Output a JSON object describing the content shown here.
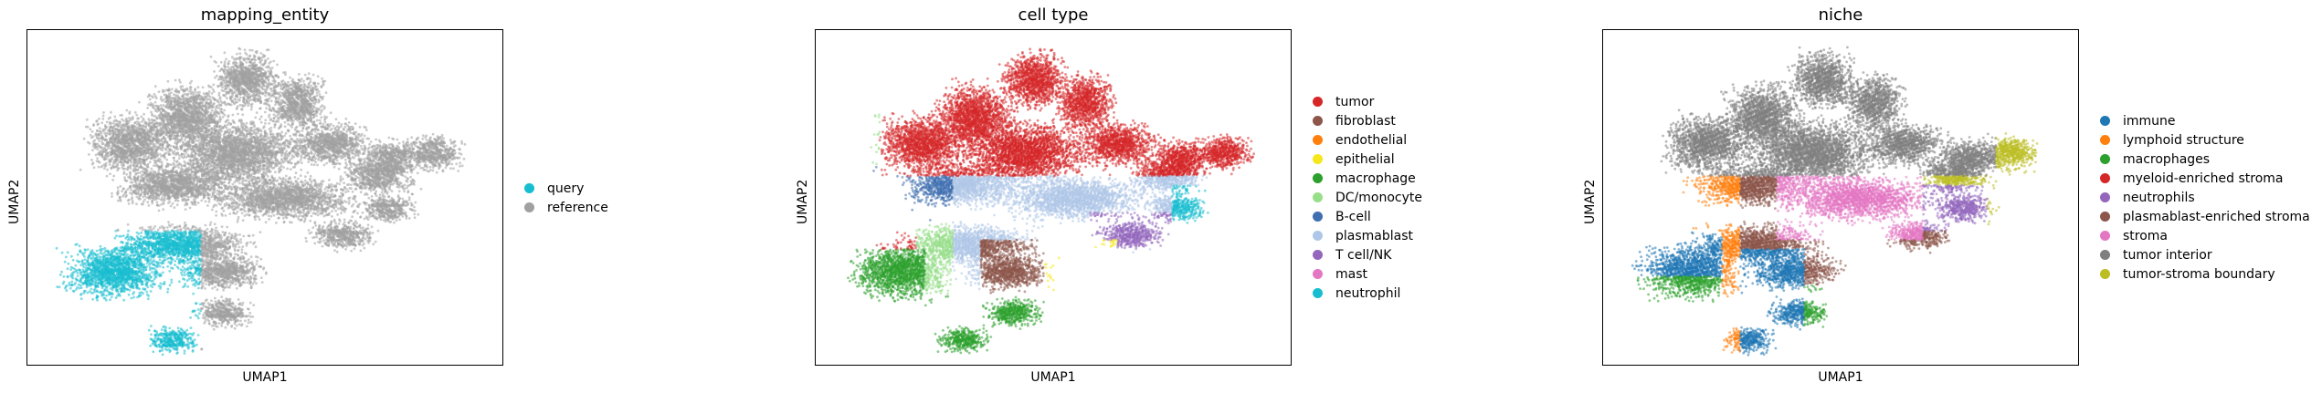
{
  "chart_data": [
    {
      "type": "scatter",
      "title": "mapping_entity",
      "xlabel": "UMAP1",
      "ylabel": "UMAP2",
      "legend_position": "right",
      "categories": [
        {
          "name": "query",
          "color": "#17becf"
        },
        {
          "name": "reference",
          "color": "#a0a0a0"
        }
      ]
    },
    {
      "type": "scatter",
      "title": "cell type",
      "xlabel": "UMAP1",
      "ylabel": "UMAP2",
      "legend_position": "right",
      "categories": [
        {
          "name": "tumor",
          "color": "#d62728"
        },
        {
          "name": "fibroblast",
          "color": "#8c564b"
        },
        {
          "name": "endothelial",
          "color": "#ff7f0e"
        },
        {
          "name": "epithelial",
          "color": "#f5e71a"
        },
        {
          "name": "macrophage",
          "color": "#2ca02c"
        },
        {
          "name": "DC/monocyte",
          "color": "#98df8a"
        },
        {
          "name": "B-cell",
          "color": "#3f6fb0"
        },
        {
          "name": "plasmablast",
          "color": "#aec7e8"
        },
        {
          "name": "T cell/NK",
          "color": "#9467bd"
        },
        {
          "name": "mast",
          "color": "#e377c2"
        },
        {
          "name": "neutrophil",
          "color": "#17becf"
        }
      ]
    },
    {
      "type": "scatter",
      "title": "niche",
      "xlabel": "UMAP1",
      "ylabel": "UMAP2",
      "legend_position": "right",
      "categories": [
        {
          "name": "immune",
          "color": "#1f77b4"
        },
        {
          "name": "lymphoid structure",
          "color": "#ff7f0e"
        },
        {
          "name": "macrophages",
          "color": "#2ca02c"
        },
        {
          "name": "myeloid-enriched stroma",
          "color": "#d62728"
        },
        {
          "name": "neutrophils",
          "color": "#9467bd"
        },
        {
          "name": "plasmablast-enriched stroma",
          "color": "#8c564b"
        },
        {
          "name": "stroma",
          "color": "#e377c2"
        },
        {
          "name": "tumor interior",
          "color": "#7f7f7f"
        },
        {
          "name": "tumor-stroma boundary",
          "color": "#bcbd22"
        }
      ]
    }
  ]
}
